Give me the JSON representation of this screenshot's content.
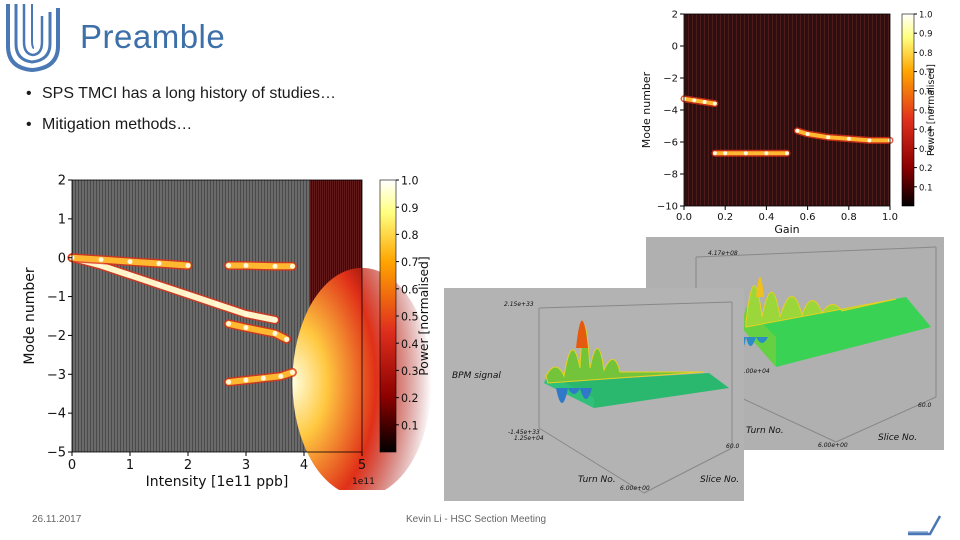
{
  "slide": {
    "title": "Preamble",
    "bullets": [
      "SPS TMCI has a long history of studies…",
      "Mitigation methods…"
    ],
    "footer_date": "26.11.2017",
    "footer_center": "Kevin Li - HSC Section Meeting"
  },
  "colors": {
    "title": "#3d6fa8",
    "logo": "#4a78b5",
    "colormap": [
      "#000000",
      "#8b0000",
      "#e0301e",
      "#ffa500",
      "#ffff80",
      "#ffffff"
    ]
  },
  "chart_data": [
    {
      "type": "heatmap",
      "xlabel": "Intensity [1e11 ppb]",
      "ylabel": "Mode number",
      "x_ticks": [
        "0",
        "1",
        "2",
        "3",
        "4",
        "5"
      ],
      "y_ticks": [
        "2",
        "1",
        "0",
        "−1",
        "−2",
        "−3",
        "−4",
        "−5"
      ],
      "x_offset_label": "1e11",
      "xlim": [
        0,
        5
      ],
      "ylim": [
        -5,
        2
      ],
      "colorbar": {
        "label": "Power [normalised]",
        "ticks": [
          "1.0",
          "0.9",
          "0.8",
          "0.7",
          "0.6",
          "0.5",
          "0.4",
          "0.3",
          "0.2",
          "0.1"
        ]
      },
      "series": [
        {
          "points": [
            [
              0.0,
              0.0
            ],
            [
              0.5,
              -0.2
            ],
            [
              1.0,
              -0.45
            ],
            [
              1.5,
              -0.7
            ],
            [
              2.0,
              -0.95
            ],
            [
              2.5,
              -1.2
            ],
            [
              3.0,
              -1.45
            ],
            [
              3.5,
              -1.6
            ]
          ]
        },
        {
          "points": [
            [
              0.0,
              0.0
            ],
            [
              0.5,
              -0.05
            ],
            [
              1.0,
              -0.1
            ],
            [
              1.5,
              -0.15
            ],
            [
              2.0,
              -0.2
            ]
          ]
        },
        {
          "points": [
            [
              2.7,
              -0.2
            ],
            [
              3.0,
              -0.2
            ],
            [
              3.5,
              -0.22
            ],
            [
              3.8,
              -0.22
            ]
          ]
        },
        {
          "points": [
            [
              2.7,
              -1.7
            ],
            [
              3.0,
              -1.8
            ],
            [
              3.5,
              -1.95
            ],
            [
              3.7,
              -2.1
            ]
          ]
        },
        {
          "points": [
            [
              2.7,
              -3.2
            ],
            [
              3.0,
              -3.15
            ],
            [
              3.3,
              -3.1
            ],
            [
              3.6,
              -3.05
            ],
            [
              3.8,
              -2.95
            ]
          ]
        }
      ]
    },
    {
      "type": "heatmap",
      "xlabel": "Gain",
      "ylabel": "Mode number",
      "x_ticks": [
        "0.0",
        "0.2",
        "0.4",
        "0.6",
        "0.8",
        "1.0"
      ],
      "y_ticks": [
        "2",
        "0",
        "−2",
        "−4",
        "−6",
        "−8",
        "−10"
      ],
      "xlim": [
        0,
        1
      ],
      "ylim": [
        -10,
        2
      ],
      "colorbar": {
        "label": "Power [normalised]",
        "ticks": [
          "1.0",
          "0.9",
          "0.8",
          "0.7",
          "0.6",
          "0.5",
          "0.4",
          "0.3",
          "0.2",
          "0.1"
        ]
      },
      "series": [
        {
          "points": [
            [
              0.0,
              -3.3
            ],
            [
              0.05,
              -3.4
            ],
            [
              0.1,
              -3.5
            ],
            [
              0.15,
              -3.6
            ]
          ]
        },
        {
          "points": [
            [
              0.15,
              -6.7
            ],
            [
              0.2,
              -6.7
            ],
            [
              0.3,
              -6.7
            ],
            [
              0.4,
              -6.7
            ],
            [
              0.5,
              -6.7
            ]
          ]
        },
        {
          "points": [
            [
              0.55,
              -5.3
            ],
            [
              0.6,
              -5.5
            ],
            [
              0.7,
              -5.7
            ],
            [
              0.8,
              -5.8
            ],
            [
              0.9,
              -5.9
            ],
            [
              1.0,
              -5.9
            ]
          ]
        }
      ]
    }
  ],
  "surface_plots": [
    {
      "top_value": "2.15e+33",
      "bottom_value": "-1.45e+33",
      "zaxis": "BPM signal",
      "xaxis": "Turn No.",
      "yaxis": "Slice No.",
      "corner_values": [
        "1.25e+04",
        "6.00e+00",
        "60.0"
      ]
    },
    {
      "top_value": "4.17e+08",
      "xaxis": "Turn No.",
      "yaxis": "Slice No.",
      "corner_values": [
        "4.00e+04",
        "6.00e+00",
        "60.0"
      ]
    }
  ]
}
